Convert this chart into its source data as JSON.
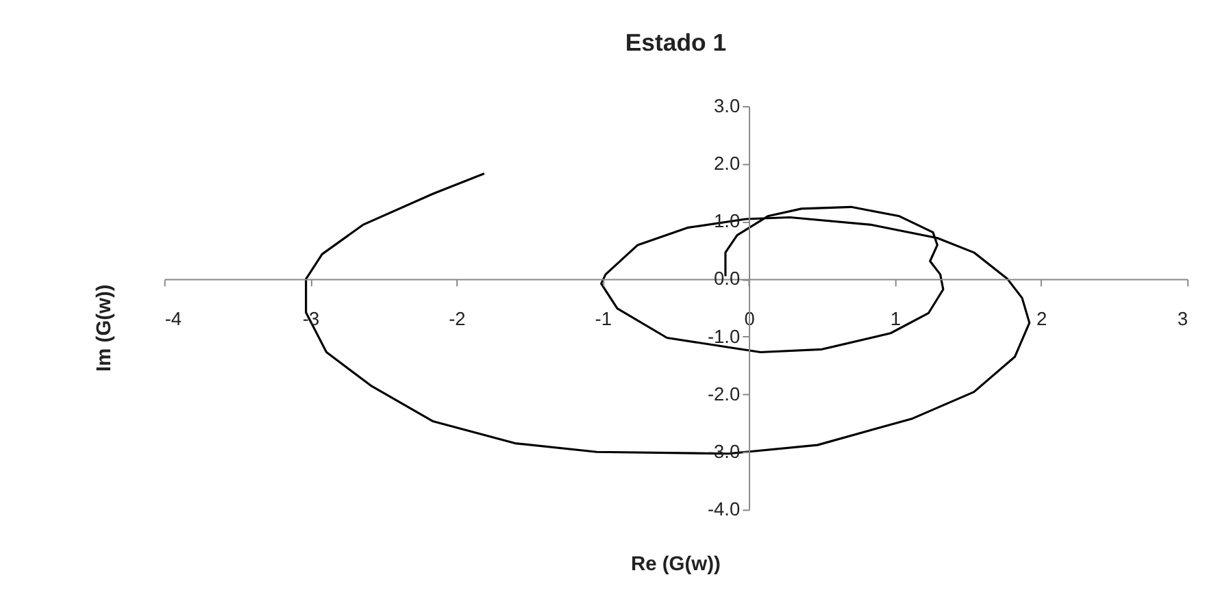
{
  "chart_data": {
    "type": "line",
    "title": "Estado 1",
    "xlabel": "Re (G(w))",
    "ylabel": "Im (G(w))",
    "xlim": [
      -4,
      3
    ],
    "xticks": [
      -4,
      -3,
      -2,
      -1,
      0,
      1,
      2,
      3
    ],
    "ylim": [
      -4,
      3
    ],
    "yticks": [
      {
        "value": -4,
        "label": "-4.0"
      },
      {
        "value": -3,
        "label": "-3.0"
      },
      {
        "value": -2,
        "label": "-2.0"
      },
      {
        "value": -1,
        "label": "-1.0"
      },
      {
        "value": 0,
        "label": "0.0"
      },
      {
        "value": 1,
        "label": "1.0"
      },
      {
        "value": 2,
        "label": "2.0"
      },
      {
        "value": 3,
        "label": "3.0"
      }
    ],
    "grid": false,
    "marker": "none",
    "line_style": "solid",
    "series": [
      {
        "color": "#000000",
        "x": [
          -1.81,
          -2.16,
          -2.64,
          -2.92,
          -3.03,
          -3.03,
          -2.89,
          -2.58,
          -2.16,
          -1.6,
          -1.04,
          -0.14,
          0.47,
          1.12,
          1.54,
          1.82,
          1.92,
          1.87,
          1.77,
          1.54,
          1.29,
          0.84,
          0.28,
          -0.02,
          -0.42,
          -0.76,
          -0.98,
          -1.01,
          -0.9,
          -0.56,
          0.08,
          0.5,
          0.97,
          1.23,
          1.33,
          1.31,
          1.24,
          1.29,
          1.26,
          1.03,
          0.7,
          0.36,
          0.13,
          -0.08,
          -0.16,
          -0.16
        ],
        "values": [
          1.83,
          1.48,
          0.94,
          0.43,
          0.0,
          -0.58,
          -1.27,
          -1.86,
          -2.47,
          -2.85,
          -3.0,
          -3.03,
          -2.88,
          -2.42,
          -1.96,
          -1.35,
          -0.76,
          -0.33,
          0.0,
          0.46,
          0.71,
          0.94,
          1.07,
          1.04,
          0.89,
          0.59,
          0.08,
          -0.08,
          -0.51,
          -1.02,
          -1.27,
          -1.22,
          -0.94,
          -0.59,
          -0.18,
          0.08,
          0.31,
          0.59,
          0.81,
          1.09,
          1.25,
          1.22,
          1.09,
          0.76,
          0.46,
          0.05
        ]
      }
    ]
  }
}
